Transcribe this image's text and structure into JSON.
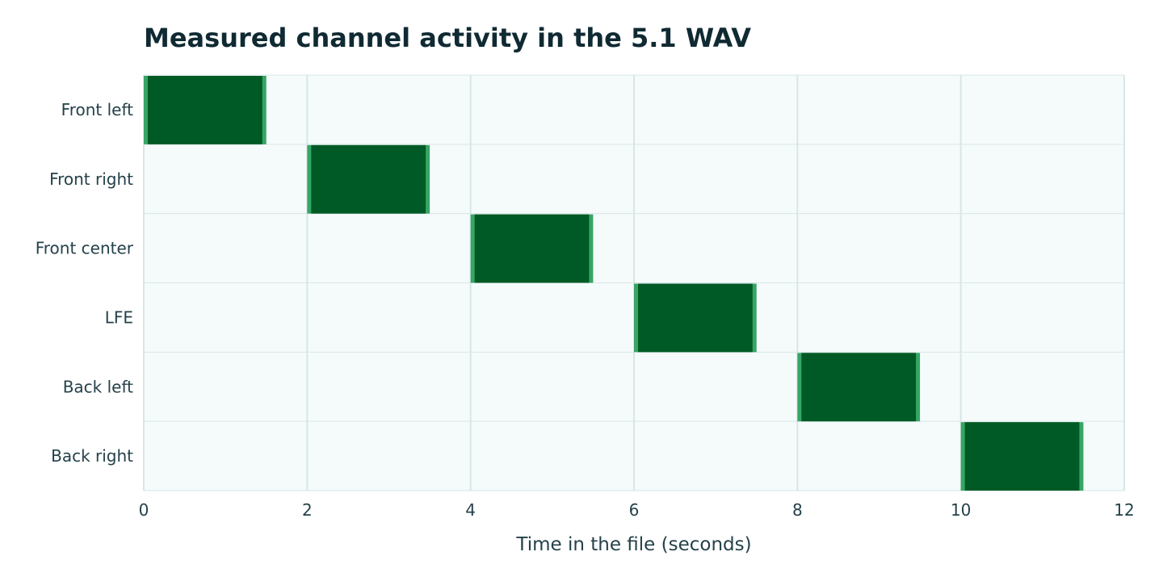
{
  "chart_data": {
    "type": "bar",
    "orientation": "horizontal-timeline",
    "title": "Measured channel activity in the 5.1 WAV",
    "xlabel": "Time in the file (seconds)",
    "ylabel": "",
    "xlim": [
      0,
      12
    ],
    "xticks": [
      "0",
      "2",
      "4",
      "6",
      "8",
      "10",
      "12"
    ],
    "grid": true,
    "categories": [
      "Front left",
      "Front right",
      "Front center",
      "LFE",
      "Back left",
      "Back right"
    ],
    "series": [
      {
        "segments": [
          {
            "category": "Front left",
            "start": 0,
            "end": 1.5
          },
          {
            "category": "Front right",
            "start": 2,
            "end": 3.5
          },
          {
            "category": "Front center",
            "start": 4,
            "end": 5.5
          },
          {
            "category": "LFE",
            "start": 6,
            "end": 7.5
          },
          {
            "category": "Back left",
            "start": 8,
            "end": 9.5
          },
          {
            "category": "Back right",
            "start": 10,
            "end": 11.5
          }
        ]
      }
    ],
    "colors": {
      "bar_fill": "#005a25",
      "bar_edge": "#36a565",
      "plot_background": "#f5fbfb",
      "grid": "#d9e6e6",
      "text": "#24414a",
      "title": "#102a33"
    }
  }
}
